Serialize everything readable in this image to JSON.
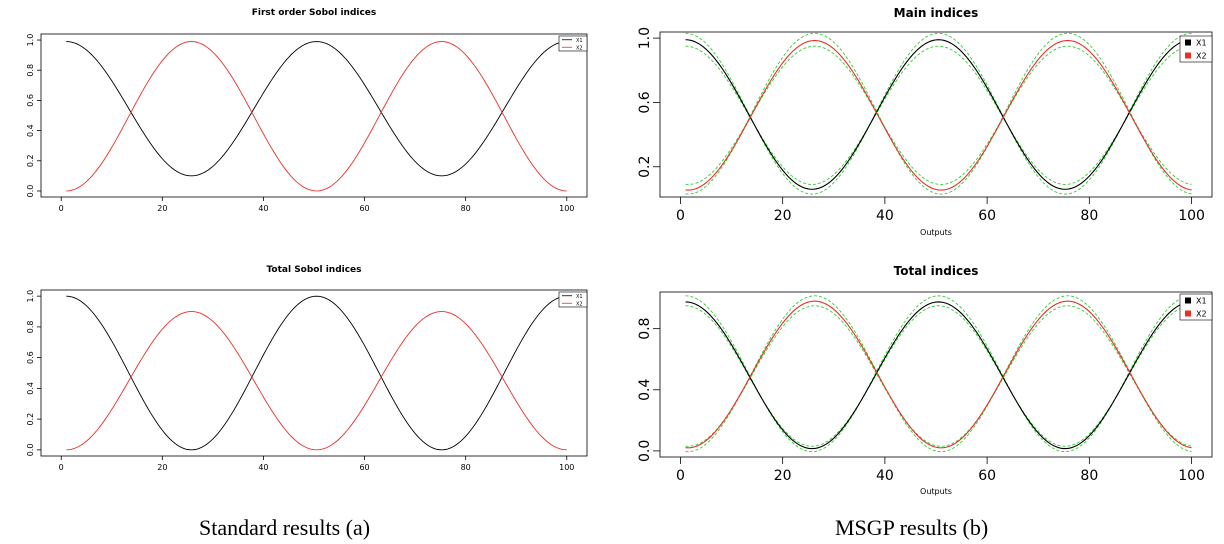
{
  "captions": {
    "left": "Standard results (a)",
    "right": "MSGP results (b)"
  },
  "colors": {
    "x1": "#000000",
    "x2": "#e8302a",
    "band": "#33cc33"
  },
  "chart_data": [
    {
      "id": "std-first",
      "type": "line",
      "title": "First order Sobol indices",
      "xlabel": "",
      "ylabel": "",
      "xlim": [
        0,
        100
      ],
      "ylim": [
        0,
        1
      ],
      "x_ticks": [
        0,
        20,
        40,
        60,
        80,
        100
      ],
      "x_tick_labels": [
        "0",
        "20",
        "40",
        "60",
        "80",
        "100"
      ],
      "y_ticks": [
        0,
        0.2,
        0.4,
        0.6,
        0.8,
        1.0
      ],
      "y_tick_labels": [
        "0.0",
        "0.2",
        "0.4",
        "0.6",
        "0.8",
        "1.0"
      ],
      "legend": {
        "position": "top-right",
        "style": "line",
        "entries": [
          "X1",
          "X2"
        ]
      },
      "series": [
        {
          "name": "X1",
          "color": "#000000",
          "shape": "cosine",
          "x_range": [
            1,
            100
          ],
          "mean": 0.545,
          "amplitude": 0.445,
          "period": 49.5,
          "phase_x": 1,
          "sign": 1
        },
        {
          "name": "X2",
          "color": "#e8302a",
          "shape": "cosine",
          "x_range": [
            1,
            100
          ],
          "mean": 0.495,
          "amplitude": 0.495,
          "period": 49.5,
          "phase_x": 1,
          "sign": -1
        }
      ],
      "bands": []
    },
    {
      "id": "std-total",
      "type": "line",
      "title": "Total Sobol indices",
      "xlabel": "",
      "ylabel": "",
      "xlim": [
        0,
        100
      ],
      "ylim": [
        0,
        1
      ],
      "x_ticks": [
        0,
        20,
        40,
        60,
        80,
        100
      ],
      "x_tick_labels": [
        "0",
        "20",
        "40",
        "60",
        "80",
        "100"
      ],
      "y_ticks": [
        0,
        0.2,
        0.4,
        0.6,
        0.8,
        1.0
      ],
      "y_tick_labels": [
        "0.0",
        "0.2",
        "0.4",
        "0.6",
        "0.8",
        "1.0"
      ],
      "legend": {
        "position": "top-right",
        "style": "line",
        "entries": [
          "X1",
          "X2"
        ]
      },
      "series": [
        {
          "name": "X1",
          "color": "#000000",
          "shape": "cosine",
          "x_range": [
            1,
            100
          ],
          "mean": 0.5,
          "amplitude": 0.5,
          "period": 49.5,
          "phase_x": 1,
          "sign": 1
        },
        {
          "name": "X2",
          "color": "#e8302a",
          "shape": "cosine",
          "x_range": [
            1,
            100
          ],
          "mean": 0.45,
          "amplitude": 0.45,
          "period": 49.5,
          "phase_x": 1,
          "sign": -1
        }
      ],
      "bands": []
    },
    {
      "id": "msgp-main",
      "type": "line",
      "title": "Main indices",
      "xlabel": "Outputs",
      "ylabel": "",
      "xlim": [
        0,
        100
      ],
      "ylim": [
        0.05,
        1
      ],
      "x_ticks": [
        0,
        20,
        40,
        60,
        80,
        100
      ],
      "x_tick_labels": [
        "0",
        "20",
        "40",
        "60",
        "80",
        "100"
      ],
      "y_ticks": [
        0.2,
        0.6,
        1.0
      ],
      "y_tick_labels": [
        "0.2",
        "0.6",
        "1.0"
      ],
      "legend": {
        "position": "top-right",
        "style": "box",
        "entries": [
          "X1",
          "X2"
        ]
      },
      "series": [
        {
          "name": "X1",
          "color": "#000000",
          "shape": "cosine",
          "x_range": [
            1,
            100
          ],
          "mean": 0.525,
          "amplitude": 0.465,
          "period": 49.5,
          "phase_x": 1,
          "sign": 1
        },
        {
          "name": "X2",
          "color": "#e8302a",
          "shape": "cosine",
          "x_range": [
            1,
            100
          ],
          "mean": 0.52,
          "amplitude": 0.465,
          "period": 49.5,
          "phase_x": 1.5,
          "sign": -1
        }
      ],
      "bands": [
        {
          "color": "#33cc33",
          "shape": "cosine",
          "x_range": [
            1,
            100
          ],
          "mean": 0.53,
          "amplitude": 0.5,
          "period": 49.5,
          "phase_x": 1,
          "sign": 1
        },
        {
          "color": "#33cc33",
          "shape": "cosine",
          "x_range": [
            1,
            100
          ],
          "mean": 0.52,
          "amplitude": 0.43,
          "period": 49.5,
          "phase_x": 1,
          "sign": 1
        },
        {
          "color": "#33cc33",
          "shape": "cosine",
          "x_range": [
            1,
            100
          ],
          "mean": 0.53,
          "amplitude": 0.5,
          "period": 49.5,
          "phase_x": 1.5,
          "sign": -1
        },
        {
          "color": "#33cc33",
          "shape": "cosine",
          "x_range": [
            1,
            100
          ],
          "mean": 0.52,
          "amplitude": 0.43,
          "period": 49.5,
          "phase_x": 1.5,
          "sign": -1
        }
      ]
    },
    {
      "id": "msgp-total",
      "type": "line",
      "title": "Total indices",
      "xlabel": "Outputs",
      "ylabel": "",
      "xlim": [
        0,
        100
      ],
      "ylim": [
        0,
        1.0
      ],
      "x_ticks": [
        0,
        20,
        40,
        60,
        80,
        100
      ],
      "x_tick_labels": [
        "0",
        "20",
        "40",
        "60",
        "80",
        "100"
      ],
      "y_ticks": [
        0,
        0.4,
        0.8
      ],
      "y_tick_labels": [
        "0.0",
        "0.4",
        "0.8"
      ],
      "legend": {
        "position": "top-right",
        "style": "box",
        "entries": [
          "X1",
          "X2"
        ]
      },
      "series": [
        {
          "name": "X1",
          "color": "#000000",
          "shape": "cosine",
          "x_range": [
            1,
            100
          ],
          "mean": 0.495,
          "amplitude": 0.48,
          "period": 49.5,
          "phase_x": 1,
          "sign": 1
        },
        {
          "name": "X2",
          "color": "#e8302a",
          "shape": "cosine",
          "x_range": [
            1,
            100
          ],
          "mean": 0.5,
          "amplitude": 0.48,
          "period": 49.5,
          "phase_x": 1.5,
          "sign": -1
        }
      ],
      "bands": [
        {
          "color": "#33cc33",
          "shape": "cosine",
          "x_range": [
            1,
            100
          ],
          "mean": 0.505,
          "amplitude": 0.51,
          "period": 49.5,
          "phase_x": 1,
          "sign": 1
        },
        {
          "color": "#33cc33",
          "shape": "cosine",
          "x_range": [
            1,
            100
          ],
          "mean": 0.49,
          "amplitude": 0.46,
          "period": 49.5,
          "phase_x": 1,
          "sign": 1
        },
        {
          "color": "#33cc33",
          "shape": "cosine",
          "x_range": [
            1,
            100
          ],
          "mean": 0.505,
          "amplitude": 0.51,
          "period": 49.5,
          "phase_x": 1.5,
          "sign": -1
        },
        {
          "color": "#33cc33",
          "shape": "cosine",
          "x_range": [
            1,
            100
          ],
          "mean": 0.49,
          "amplitude": 0.46,
          "period": 49.5,
          "phase_x": 1.5,
          "sign": -1
        }
      ]
    }
  ]
}
